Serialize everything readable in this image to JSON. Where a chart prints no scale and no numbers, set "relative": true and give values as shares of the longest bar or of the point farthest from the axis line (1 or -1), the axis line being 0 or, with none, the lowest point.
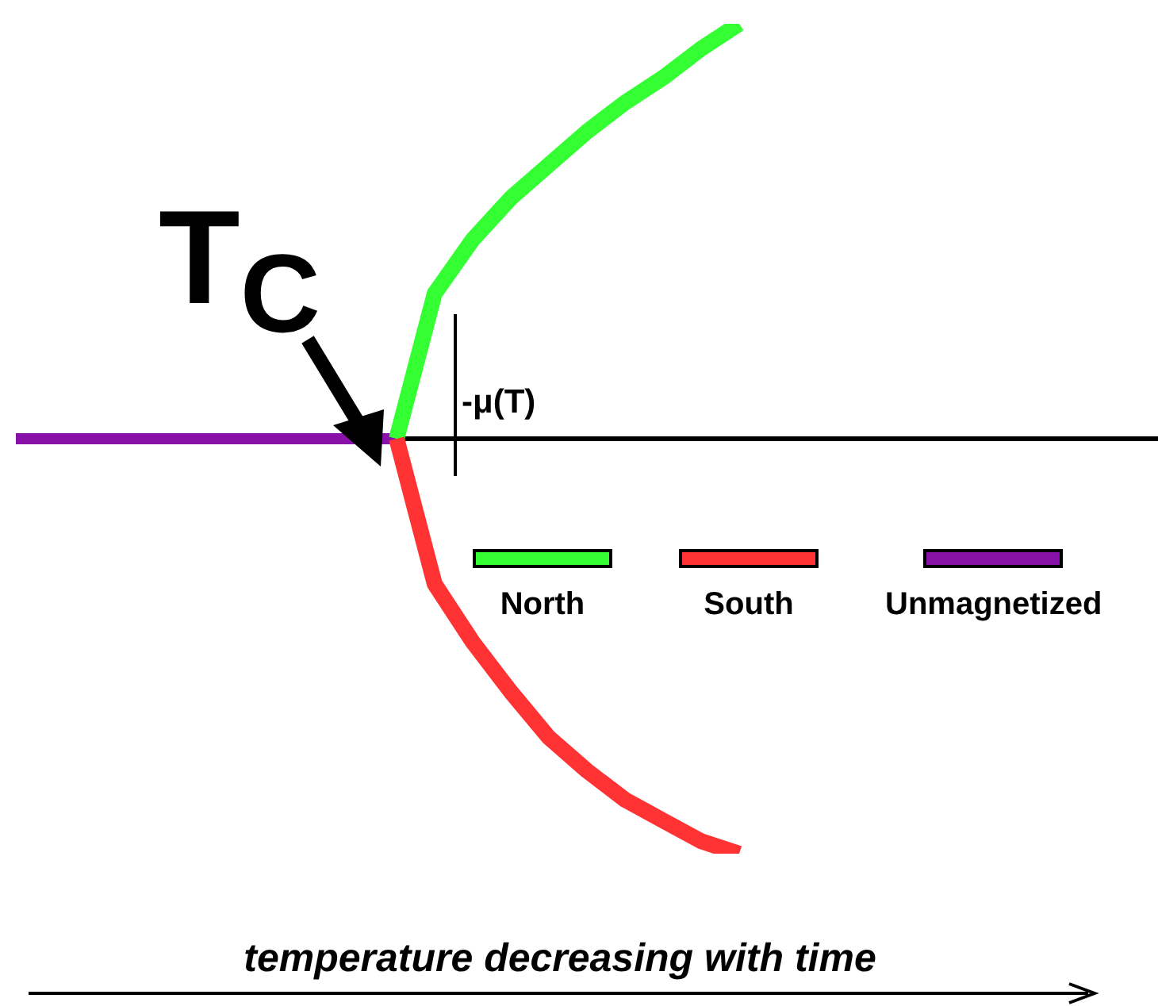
{
  "chart_data": {
    "type": "line",
    "relative": true,
    "xlabel": "temperature decreasing with time",
    "categories": [
      null,
      null,
      null,
      null,
      null,
      null,
      null,
      null,
      null,
      null,
      null,
      null,
      null,
      null,
      null,
      null,
      null,
      null,
      null,
      null,
      null,
      null,
      null,
      null,
      null,
      null,
      null,
      null,
      null,
      null,
      null
    ],
    "series": [
      {
        "name": "Unmagnetized",
        "color": "#8811aa",
        "values": [
          0,
          0,
          0,
          0,
          0,
          0,
          0,
          0,
          0,
          0,
          0,
          null,
          null,
          null,
          null,
          null,
          null,
          null,
          null,
          null,
          null,
          null,
          null,
          null,
          null,
          null,
          null,
          null,
          null,
          null,
          null
        ]
      },
      {
        "name": "North",
        "color": "#33ff33",
        "values": [
          null,
          null,
          null,
          null,
          null,
          null,
          null,
          null,
          null,
          null,
          0,
          0.35,
          0.48,
          0.58,
          0.66,
          0.74,
          0.81,
          0.87,
          0.94,
          1.0,
          null,
          null,
          null,
          null,
          null,
          null,
          null,
          null,
          null,
          null,
          null
        ]
      },
      {
        "name": "South",
        "color": "#ff3333",
        "values": [
          null,
          null,
          null,
          null,
          null,
          null,
          null,
          null,
          null,
          null,
          0,
          -0.35,
          -0.49,
          -0.61,
          -0.72,
          -0.8,
          -0.87,
          -0.92,
          -0.97,
          -1.0,
          null,
          null,
          null,
          null,
          null,
          null,
          null,
          null,
          null,
          null,
          null
        ]
      }
    ],
    "annotations": [
      "T$_{C}$",
      "-μ(T)"
    ],
    "legend": "right",
    "marker": "none",
    "line_style": "solid",
    "grid": false
  }
}
